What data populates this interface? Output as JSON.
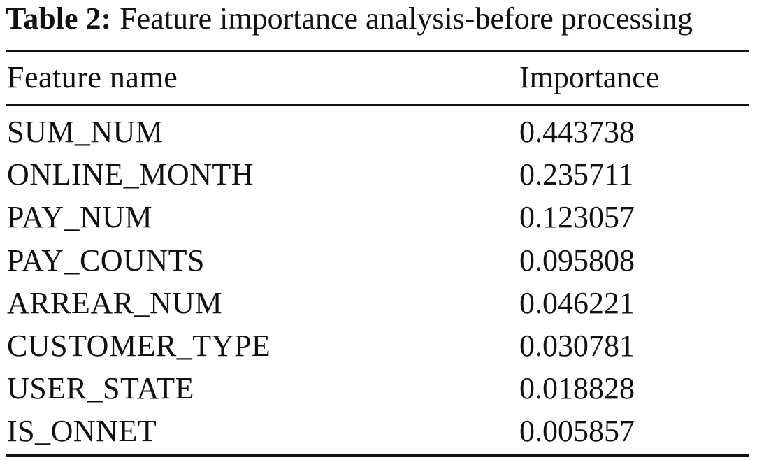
{
  "caption": {
    "label": "Table 2:",
    "text": "Feature importance analysis-before processing"
  },
  "table": {
    "columns": [
      "Feature name",
      "Importance"
    ],
    "rows": [
      {
        "feature": "SUM_NUM",
        "importance": "0.443738"
      },
      {
        "feature": "ONLINE_MONTH",
        "importance": "0.235711"
      },
      {
        "feature": "PAY_NUM",
        "importance": "0.123057"
      },
      {
        "feature": "PAY_COUNTS",
        "importance": "0.095808"
      },
      {
        "feature": "ARREAR_NUM",
        "importance": "0.046221"
      },
      {
        "feature": "CUSTOMER_TYPE",
        "importance": "0.030781"
      },
      {
        "feature": "USER_STATE",
        "importance": "0.018828"
      },
      {
        "feature": "IS_ONNET",
        "importance": "0.005857"
      }
    ]
  }
}
